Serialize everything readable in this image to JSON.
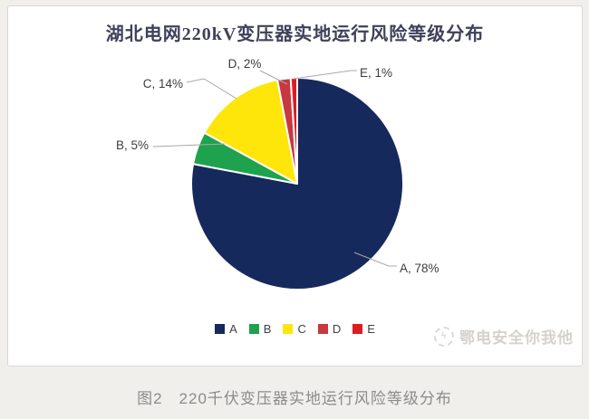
{
  "page": {
    "background": "#f1efec"
  },
  "chart": {
    "title": "湖北电网220kV变压器实地运行风险等级分布",
    "watermark_text": "鄂电安全你我他",
    "watermark_icon": "dashed-circle-logo",
    "caption": "图2　220千伏变压器实地运行风险等级分布"
  },
  "chart_data": {
    "type": "pie",
    "title": "湖北电网220kV变压器实地运行风险等级分布",
    "categories": [
      "A",
      "B",
      "C",
      "D",
      "E"
    ],
    "values": [
      78,
      5,
      14,
      2,
      1
    ],
    "unit": "%",
    "colors": [
      "#16295c",
      "#1fa24d",
      "#ffe60a",
      "#c8383e",
      "#e01b24"
    ],
    "data_labels": [
      "A, 78%",
      "B, 5%",
      "C, 14%",
      "D, 2%",
      "E, 1%"
    ],
    "start_angle_deg": 0,
    "direction": "clockwise",
    "legend_position": "bottom",
    "label_color": "#3d3d3d",
    "leader_line_color": "#a8a8a8",
    "slice_border_color": "#ffffff"
  }
}
